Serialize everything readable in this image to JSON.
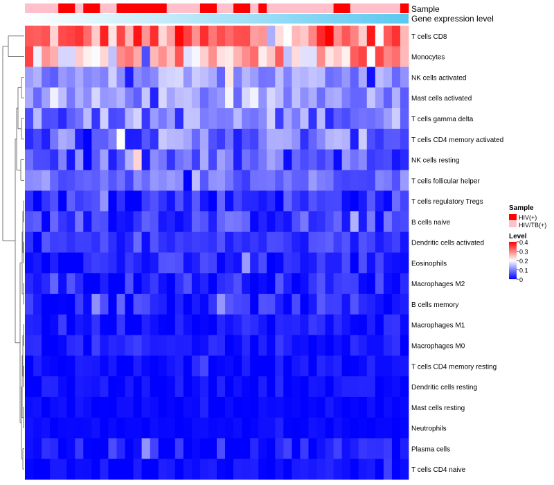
{
  "chart_data": {
    "type": "heatmap",
    "title": "",
    "column_annotations": [
      {
        "name": "Sample",
        "label": "Sample"
      },
      {
        "name": "Gene expression level",
        "label": "Gene expression level"
      }
    ],
    "rows": [
      "T cells CD8",
      "Monocytes",
      "NK cells activated",
      "Mast cells activated",
      "T cells gamma delta",
      "T cells CD4 memory activated",
      "NK cells resting",
      "T cells follicular helper",
      "T cells regulatory  Tregs",
      "B cells naive",
      "Dendritic cells activated",
      "Eosinophils",
      "Macrophages M2",
      "B cells memory",
      "Macrophages M1",
      "Macrophages M0",
      "T cells CD4 memory resting",
      "Dendritic cells resting",
      "Mast cells resting",
      "Neutrophils",
      "Plasma cells",
      "T cells CD4 naive"
    ],
    "n_columns": 46,
    "sample_groups": [
      1,
      1,
      1,
      1,
      0,
      0,
      1,
      0,
      0,
      1,
      1,
      0,
      0,
      0,
      0,
      0,
      0,
      1,
      1,
      1,
      1,
      0,
      0,
      1,
      1,
      0,
      0,
      1,
      0,
      1,
      1,
      1,
      1,
      1,
      1,
      1,
      1,
      0,
      0,
      1,
      1,
      1,
      1,
      1,
      1,
      0
    ],
    "color_scale": {
      "min": 0,
      "max": 0.4,
      "low_color": "#0000ff",
      "mid_color": "#ffffff",
      "high_color": "#ff0000",
      "midpoint": 0.2
    },
    "legend": {
      "sample_title": "Sample",
      "sample_entries": [
        {
          "label": "HIV(+)",
          "color": "#ff0000"
        },
        {
          "label": "HIV/TB(+)",
          "color": "#ffc0cb"
        }
      ],
      "level_title": "Level",
      "level_ticks": [
        "0.4",
        "0.3",
        "0.2",
        "0.1",
        "0"
      ],
      "placement": "right"
    },
    "gradient_colors": [
      "#ffffff",
      "#5bc8f0"
    ],
    "row_profiles": [
      {
        "row": "T cells CD8",
        "mean": 0.3,
        "spread": 0.1
      },
      {
        "row": "Monocytes",
        "mean": 0.25,
        "spread": 0.1
      },
      {
        "row": "NK cells activated",
        "mean": 0.12,
        "spread": 0.05
      },
      {
        "row": "Mast cells activated",
        "mean": 0.12,
        "spread": 0.05
      },
      {
        "row": "T cells gamma delta",
        "mean": 0.1,
        "spread": 0.07
      },
      {
        "row": "T cells CD4 memory activated",
        "mean": 0.09,
        "spread": 0.07
      },
      {
        "row": "NK cells resting",
        "mean": 0.07,
        "spread": 0.07
      },
      {
        "row": "T cells follicular helper",
        "mean": 0.09,
        "spread": 0.04
      },
      {
        "row": "T cells regulatory  Tregs",
        "mean": 0.04,
        "spread": 0.05
      },
      {
        "row": "B cells naive",
        "mean": 0.05,
        "spread": 0.05
      },
      {
        "row": "Dendritic cells activated",
        "mean": 0.04,
        "spread": 0.03
      },
      {
        "row": "Eosinophils",
        "mean": 0.03,
        "spread": 0.04
      },
      {
        "row": "Macrophages M2",
        "mean": 0.03,
        "spread": 0.04
      },
      {
        "row": "B cells memory",
        "mean": 0.03,
        "spread": 0.04
      },
      {
        "row": "Macrophages M1",
        "mean": 0.02,
        "spread": 0.03
      },
      {
        "row": "Macrophages M0",
        "mean": 0.02,
        "spread": 0.03
      },
      {
        "row": "T cells CD4 memory resting",
        "mean": 0.01,
        "spread": 0.02
      },
      {
        "row": "Dendritic cells resting",
        "mean": 0.01,
        "spread": 0.02
      },
      {
        "row": "Mast cells resting",
        "mean": 0.005,
        "spread": 0.01
      },
      {
        "row": "Neutrophils",
        "mean": 0.005,
        "spread": 0.01
      },
      {
        "row": "Plasma cells",
        "mean": 0.02,
        "spread": 0.04
      },
      {
        "row": "T cells CD4 naive",
        "mean": 0.01,
        "spread": 0.02
      }
    ]
  }
}
